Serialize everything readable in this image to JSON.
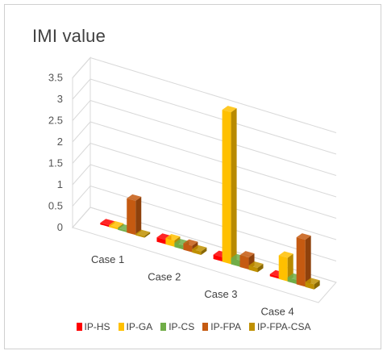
{
  "chart_data": {
    "type": "bar",
    "title": "IMI value",
    "categories": [
      "Case 1",
      "Case 2",
      "Case 3",
      "Case 4"
    ],
    "series": [
      {
        "name": "IP-HS",
        "color": "#ff0000",
        "values": [
          0.02,
          0.1,
          0.1,
          0.05
        ]
      },
      {
        "name": "IP-GA",
        "color": "#ffc000",
        "values": [
          0.05,
          0.15,
          3.55,
          0.55
        ]
      },
      {
        "name": "IP-CS",
        "color": "#70ad47",
        "values": [
          0.03,
          0.1,
          0.15,
          0.1
        ]
      },
      {
        "name": "IP-FPA",
        "color": "#c55a11",
        "values": [
          0.8,
          0.15,
          0.28,
          1.1
        ]
      },
      {
        "name": "IP-FPA-CSA",
        "color": "#bf9000",
        "values": [
          0.02,
          0.08,
          0.1,
          0.12
        ]
      }
    ],
    "yticks": [
      "0",
      "0.5",
      "1",
      "1.5",
      "2",
      "2.5",
      "3",
      "3.5"
    ],
    "ylim": [
      0,
      3.5
    ],
    "grid": true,
    "legend": "bottom"
  }
}
